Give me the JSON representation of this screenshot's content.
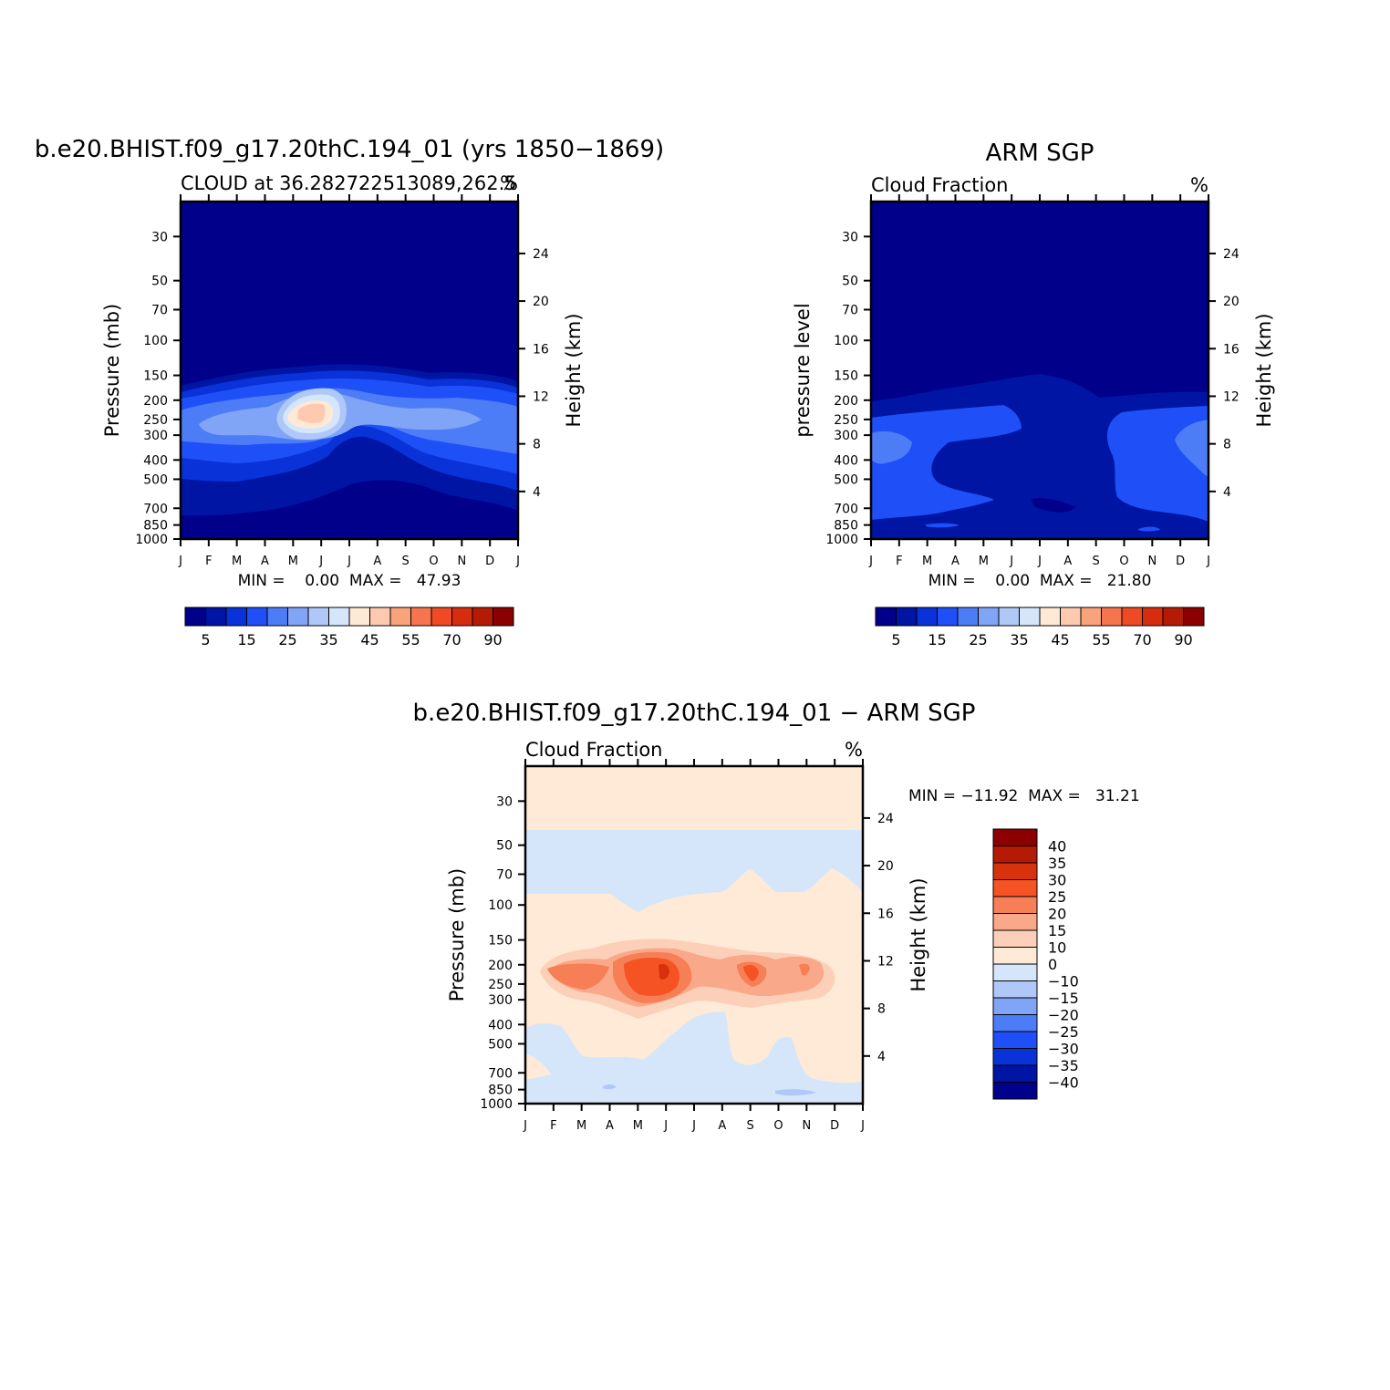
{
  "chart_data": [
    {
      "type": "contour",
      "title": "b.e20.BHIST.f09_g17.20thC.194_01 (yrs 1850−1869)",
      "subtitle_left": "CLOUD at 36.282722513089,262.5",
      "subtitle_right": "%",
      "ylabel_left": "Pressure (mb)",
      "ylabel_right": "Height (km)",
      "months": [
        "J",
        "F",
        "M",
        "A",
        "M",
        "J",
        "J",
        "A",
        "S",
        "O",
        "N",
        "D",
        "J"
      ],
      "pressure_ticks": [
        30,
        50,
        70,
        100,
        150,
        200,
        250,
        300,
        400,
        500,
        700,
        850,
        1000
      ],
      "height_ticks": [
        24,
        20,
        16,
        12,
        8,
        4
      ],
      "stats_text": "MIN =    0.00  MAX =   47.93",
      "min": 0.0,
      "max": 47.93,
      "colorbar_labels": [
        "5",
        "15",
        "25",
        "35",
        "45",
        "55",
        "70",
        "90"
      ]
    },
    {
      "type": "contour",
      "title": "ARM SGP",
      "subtitle_left": "Cloud Fraction",
      "subtitle_right": "%",
      "ylabel_left": "pressure level",
      "ylabel_right": "Height (km)",
      "months": [
        "J",
        "F",
        "M",
        "A",
        "M",
        "J",
        "J",
        "A",
        "S",
        "O",
        "N",
        "D",
        "J"
      ],
      "pressure_ticks": [
        30,
        50,
        70,
        100,
        150,
        200,
        250,
        300,
        400,
        500,
        700,
        850,
        1000
      ],
      "height_ticks": [
        24,
        20,
        16,
        12,
        8,
        4
      ],
      "stats_text": "MIN =    0.00  MAX =   21.80",
      "min": 0.0,
      "max": 21.8,
      "colorbar_labels": [
        "5",
        "15",
        "25",
        "35",
        "45",
        "55",
        "70",
        "90"
      ]
    },
    {
      "type": "contour",
      "title": "b.e20.BHIST.f09_g17.20thC.194_01 − ARM SGP",
      "subtitle_left": "Cloud Fraction",
      "subtitle_right": "%",
      "ylabel_left": "Pressure (mb)",
      "ylabel_right": "Height (km)",
      "months": [
        "J",
        "F",
        "M",
        "A",
        "M",
        "J",
        "J",
        "A",
        "S",
        "O",
        "N",
        "D",
        "J"
      ],
      "pressure_ticks": [
        30,
        50,
        70,
        100,
        150,
        200,
        250,
        300,
        400,
        500,
        700,
        850,
        1000
      ],
      "height_ticks": [
        24,
        20,
        16,
        12,
        8,
        4
      ],
      "stats_text": "MIN = −11.92  MAX =   31.21",
      "min": -11.92,
      "max": 31.21,
      "colorbar_labels": [
        "40",
        "35",
        "30",
        "25",
        "20",
        "15",
        "10",
        "0",
        "−10",
        "−15",
        "−20",
        "−25",
        "−30",
        "−35",
        "−40"
      ]
    }
  ],
  "palette": {
    "seq": [
      "#00008a",
      "#0015a3",
      "#0a32d9",
      "#1f4ff7",
      "#4d7df6",
      "#80a5f6",
      "#b0c8f8",
      "#d5e6fb",
      "#fee9d6",
      "#fdcab0",
      "#f9a37b",
      "#f4754e",
      "#ee4a24",
      "#d62d0f",
      "#b31b05",
      "#8b0000"
    ],
    "div": [
      "#8b0000",
      "#b31b05",
      "#d8320c",
      "#f55323",
      "#f67f55",
      "#f9a889",
      "#fcd0b8",
      "#feead6",
      "#d5e6fb",
      "#b0c8f8",
      "#80a5f6",
      "#4d7df6",
      "#1f4ff7",
      "#0a32d9",
      "#0015a3",
      "#00008a"
    ]
  }
}
